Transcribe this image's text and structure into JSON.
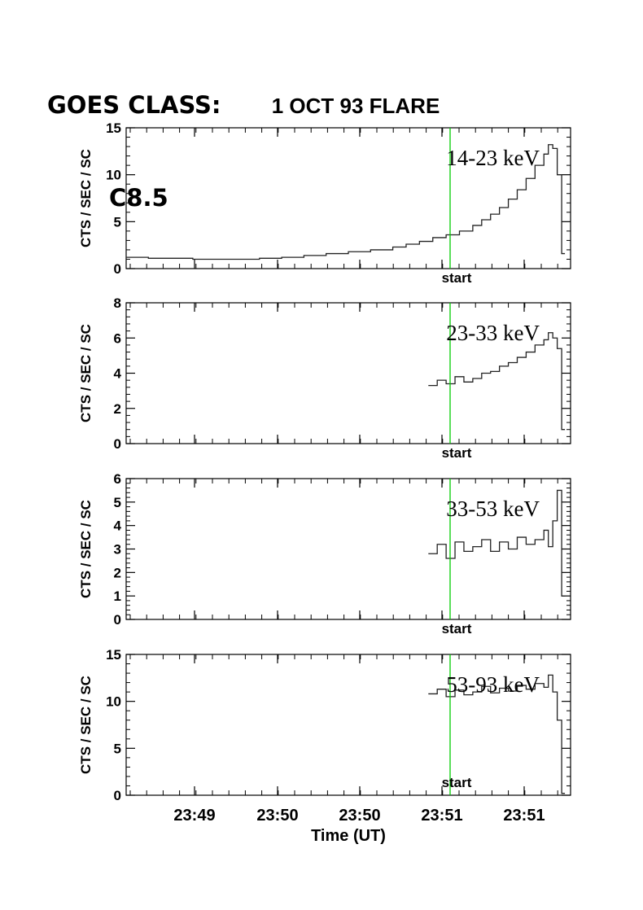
{
  "goes": {
    "heading": "GOES CLASS:",
    "class": "C8.5"
  },
  "chart_data": [
    {
      "type": "line",
      "title": "1 OCT 93 FLARE",
      "band": "14-23 keV",
      "ylabel": "CTS / SEC / SC",
      "ylim": [
        0,
        15
      ],
      "yticks": [
        0,
        5,
        10,
        15
      ],
      "marker_label": "start",
      "step": true,
      "x": [
        0,
        0.05,
        0.1,
        0.15,
        0.2,
        0.25,
        0.3,
        0.35,
        0.4,
        0.45,
        0.5,
        0.55,
        0.6,
        0.63,
        0.66,
        0.69,
        0.72,
        0.75,
        0.78,
        0.8,
        0.82,
        0.84,
        0.86,
        0.88,
        0.9,
        0.92,
        0.94,
        0.95,
        0.96,
        0.97,
        0.98
      ],
      "y": [
        1.2,
        1.1,
        1.1,
        1.0,
        1.0,
        1.0,
        1.1,
        1.2,
        1.4,
        1.6,
        1.8,
        2.0,
        2.3,
        2.6,
        2.9,
        3.3,
        3.6,
        4.0,
        4.6,
        5.2,
        5.8,
        6.5,
        7.4,
        8.4,
        9.6,
        11.0,
        12.2,
        13.2,
        12.8,
        10.0,
        1.6
      ]
    },
    {
      "type": "line",
      "band": "23-33 keV",
      "ylabel": "CTS / SEC / SC",
      "ylim": [
        0,
        8
      ],
      "yticks": [
        0,
        2,
        4,
        6,
        8
      ],
      "marker_label": "start",
      "step": true,
      "x": [
        0.68,
        0.7,
        0.72,
        0.74,
        0.76,
        0.78,
        0.8,
        0.82,
        0.84,
        0.86,
        0.88,
        0.9,
        0.92,
        0.94,
        0.95,
        0.96,
        0.97,
        0.98
      ],
      "y": [
        3.3,
        3.6,
        3.4,
        3.8,
        3.5,
        3.7,
        4.0,
        4.1,
        4.4,
        4.6,
        4.9,
        5.2,
        5.6,
        5.9,
        6.3,
        6.0,
        5.4,
        0.8
      ]
    },
    {
      "type": "line",
      "band": "33-53 keV",
      "ylabel": "CTS / SEC / SC",
      "ylim": [
        0,
        6
      ],
      "yticks": [
        0,
        1,
        2,
        3,
        4,
        5,
        6
      ],
      "marker_label": "start",
      "step": true,
      "x": [
        0.68,
        0.7,
        0.72,
        0.74,
        0.76,
        0.78,
        0.8,
        0.82,
        0.84,
        0.86,
        0.88,
        0.9,
        0.92,
        0.94,
        0.95,
        0.96,
        0.97,
        0.98
      ],
      "y": [
        2.8,
        3.2,
        2.6,
        3.3,
        2.9,
        3.1,
        3.4,
        2.9,
        3.3,
        3.0,
        3.5,
        3.2,
        3.4,
        3.8,
        3.1,
        4.2,
        5.5,
        1.0
      ]
    },
    {
      "type": "line",
      "band": "53-93 keV",
      "ylabel": "CTS / SEC / SC",
      "ylim": [
        0,
        15
      ],
      "yticks": [
        0,
        5,
        10,
        15
      ],
      "marker_label": "start",
      "step": true,
      "xlabel": "Time (UT)",
      "xtick_labels": [
        "23:49",
        "23:50",
        "23:50",
        "23:51",
        "23:51"
      ],
      "x": [
        0.68,
        0.7,
        0.72,
        0.74,
        0.76,
        0.78,
        0.8,
        0.82,
        0.84,
        0.86,
        0.88,
        0.9,
        0.92,
        0.94,
        0.95,
        0.96,
        0.97,
        0.98
      ],
      "y": [
        10.8,
        11.3,
        10.5,
        11.2,
        10.7,
        11.0,
        11.6,
        10.9,
        11.4,
        11.1,
        11.7,
        11.3,
        11.9,
        11.5,
        12.8,
        11.0,
        8.0,
        0.2
      ]
    }
  ],
  "colors": {
    "axis": "#000000",
    "data": "#222222",
    "marker": "#00cc00"
  }
}
